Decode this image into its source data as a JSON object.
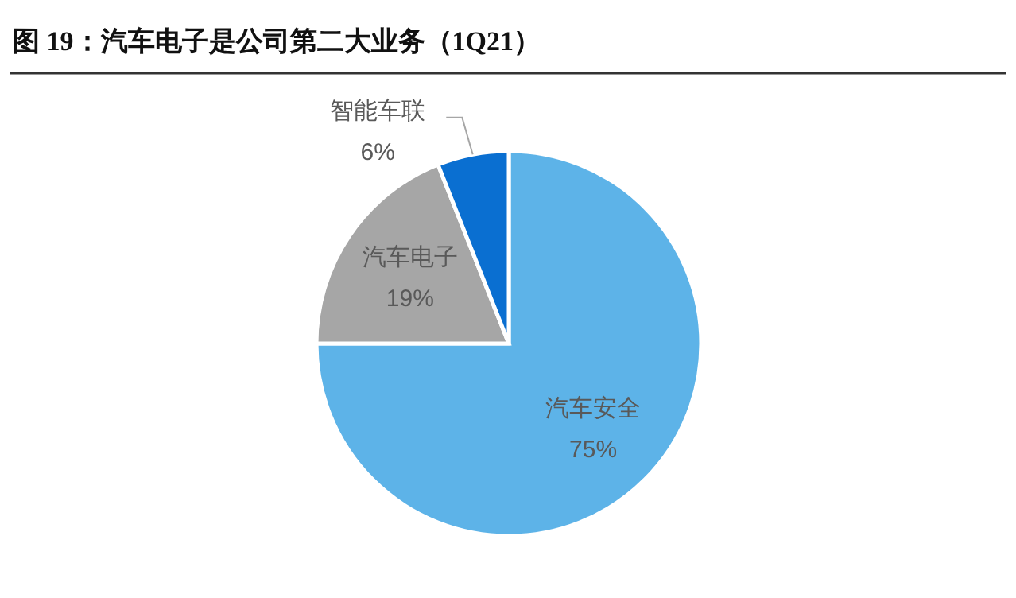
{
  "chart_data": {
    "type": "pie",
    "title": "图 19：汽车电子是公司第二大业务（1Q21）",
    "categories": [
      "汽车安全",
      "汽车电子",
      "智能车联"
    ],
    "values": [
      75,
      19,
      6
    ],
    "value_labels": [
      "75%",
      "19%",
      "6%"
    ],
    "colors": [
      "#5db3e8",
      "#a6a6a6",
      "#0a6fd1"
    ]
  }
}
